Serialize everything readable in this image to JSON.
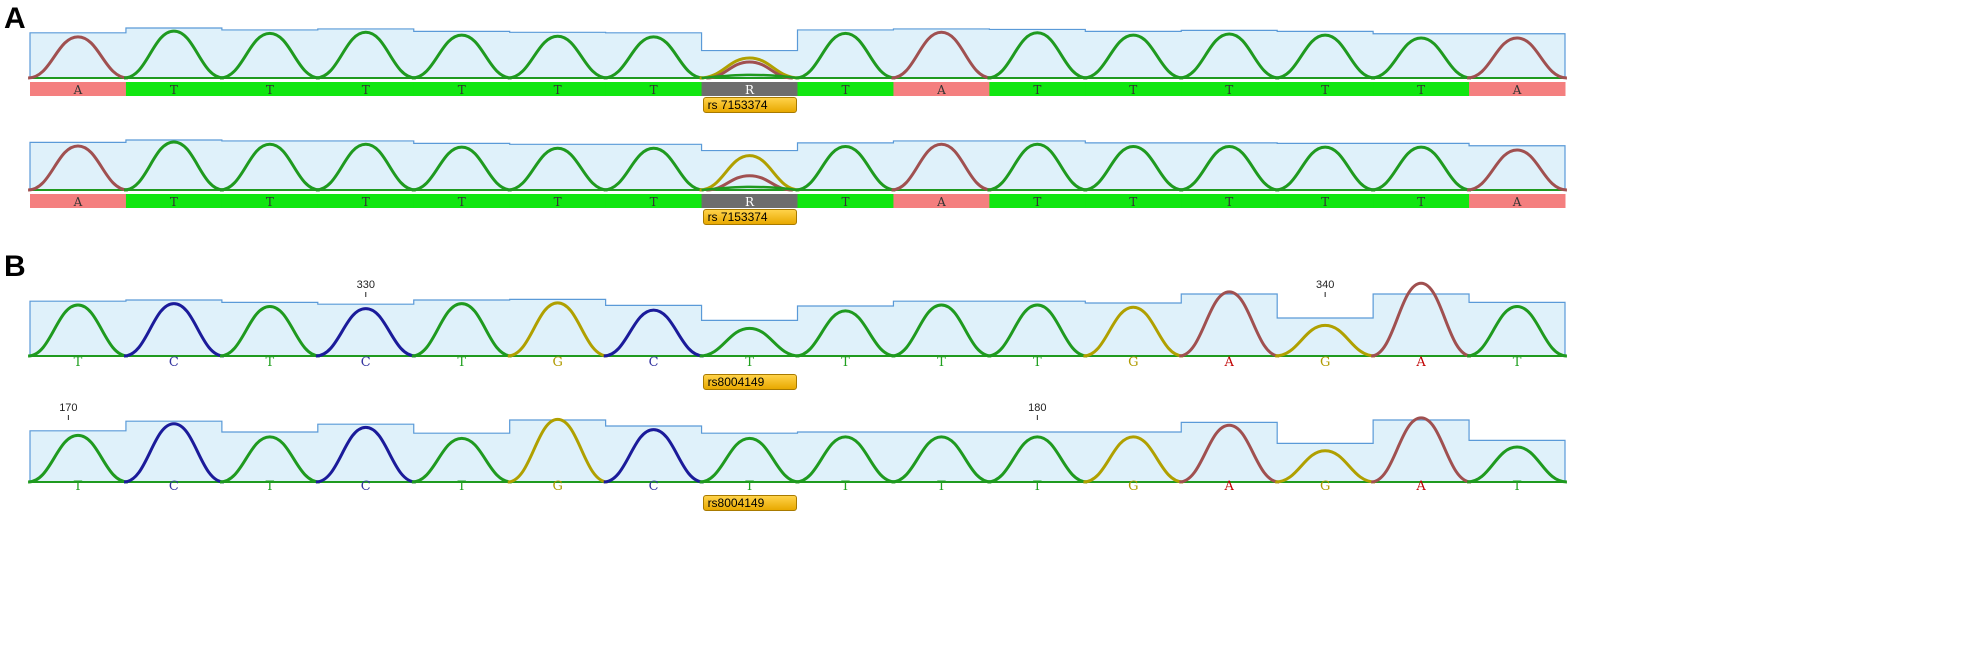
{
  "panels": [
    {
      "label": "A"
    },
    {
      "label": "B"
    }
  ],
  "tracks": [
    {
      "style": "colored-bar",
      "bases": [
        "A",
        "T",
        "T",
        "T",
        "T",
        "T",
        "T",
        "R",
        "T",
        "A",
        "T",
        "T",
        "T",
        "T",
        "T",
        "A"
      ],
      "peaks": [
        0.72,
        0.82,
        0.78,
        0.8,
        0.75,
        0.73,
        0.72,
        0.35,
        0.78,
        0.8,
        0.79,
        0.75,
        0.77,
        0.75,
        0.7,
        0.7
      ],
      "secondary": {
        "7": 0.28
      },
      "snp": {
        "index": 7,
        "label": "rs 7153374"
      }
    },
    {
      "style": "colored-bar",
      "bases": [
        "A",
        "T",
        "T",
        "T",
        "T",
        "T",
        "T",
        "R",
        "T",
        "A",
        "T",
        "T",
        "T",
        "T",
        "T",
        "A"
      ],
      "peaks": [
        0.77,
        0.84,
        0.8,
        0.8,
        0.75,
        0.73,
        0.73,
        0.6,
        0.76,
        0.8,
        0.8,
        0.76,
        0.76,
        0.75,
        0.75,
        0.7
      ],
      "secondary": {
        "7": 0.25
      },
      "snp": {
        "index": 7,
        "label": "rs 7153374"
      }
    },
    {
      "style": "letters",
      "bases": [
        "T",
        "C",
        "T",
        "C",
        "T",
        "G",
        "C",
        "T",
        "T",
        "T",
        "T",
        "G",
        "A",
        "G",
        "A",
        "T"
      ],
      "peaks": [
        0.7,
        0.72,
        0.68,
        0.65,
        0.72,
        0.73,
        0.63,
        0.38,
        0.62,
        0.7,
        0.7,
        0.67,
        0.88,
        0.42,
        1.0,
        0.68
      ],
      "secondary": {},
      "ruler": [
        {
          "label": "330",
          "index": 3.5
        },
        {
          "label": "340",
          "index": 13.5
        }
      ],
      "snp": {
        "index": 7,
        "label": "rs8004149"
      }
    },
    {
      "style": "letters",
      "bases": [
        "T",
        "C",
        "T",
        "C",
        "T",
        "G",
        "C",
        "T",
        "T",
        "T",
        "T",
        "G",
        "A",
        "G",
        "A",
        "T"
      ],
      "peaks": [
        0.64,
        0.8,
        0.62,
        0.75,
        0.6,
        0.86,
        0.72,
        0.6,
        0.62,
        0.62,
        0.62,
        0.62,
        0.78,
        0.43,
        0.88,
        0.48
      ],
      "secondary": {},
      "ruler": [
        {
          "label": "170",
          "index": 0.4
        },
        {
          "label": "180",
          "index": 10.5
        }
      ],
      "snp": {
        "index": 7,
        "label": "rs8004149"
      }
    }
  ],
  "colors": {
    "A": "#a05050",
    "T": "#1f9a1f",
    "G": "#b0a000",
    "C": "#1b1b9a",
    "R": "#5a5a5a",
    "quality_line": "#5a9ad8",
    "quality_fill": "#dff1fa",
    "bar_A": "#f47f7f",
    "bar_T": "#11e611",
    "bar_R": "#6d6d6d",
    "letter_A": "#c00000",
    "letter_T": "#20a020",
    "letter_G": "#b09a00",
    "letter_C": "#3535a0"
  }
}
